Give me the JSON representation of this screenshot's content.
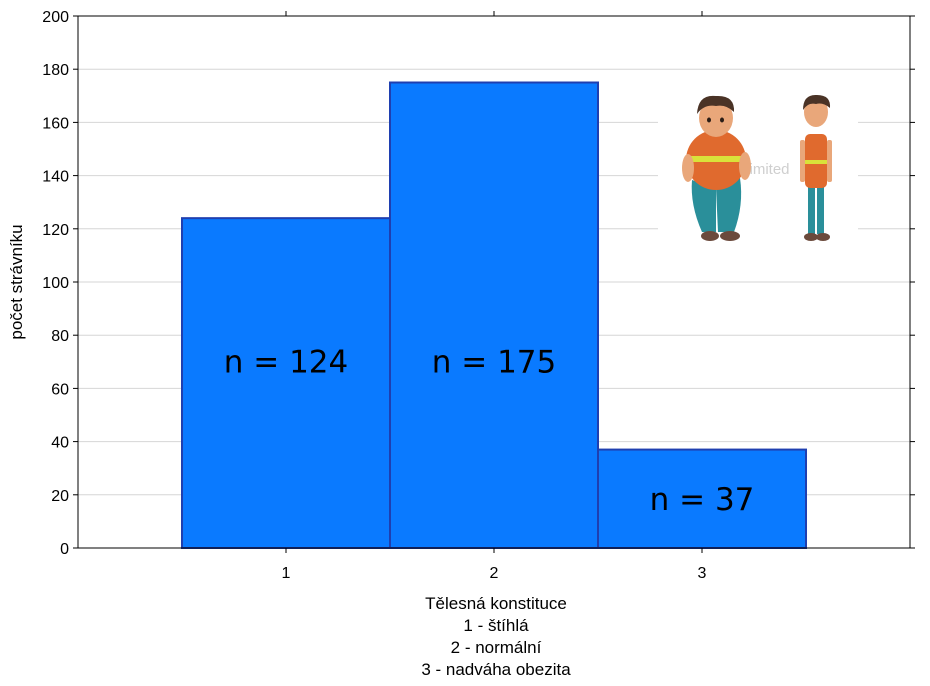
{
  "chart_data": {
    "type": "bar",
    "categories": [
      "1",
      "2",
      "3"
    ],
    "values": [
      124,
      175,
      37
    ],
    "data_labels": [
      "n = 124",
      "n = 175",
      "n = 37"
    ],
    "ylabel": "počet strávníku",
    "xlabel_lines": [
      "Tělesná konstituce",
      "1 - štíhlá",
      "2 - normální",
      "3 - nadváha obezita"
    ],
    "ylim": [
      0,
      200
    ],
    "yticks": [
      0,
      20,
      40,
      60,
      80,
      100,
      120,
      140,
      160,
      180,
      200
    ],
    "xlim": [
      0.0,
      4.0
    ],
    "grid": true,
    "legend": "none",
    "bar_color": "#0a7aff",
    "bar_edge_color": "#1f3fb0"
  },
  "illustration": {
    "watermark_text": "stockunlimited",
    "skin_color": "#e9a77a",
    "shirt_color": "#e06a2e",
    "pants_color": "#2a8f9a",
    "hair_color": "#4a3326",
    "belt_color": "#d9e23a"
  }
}
